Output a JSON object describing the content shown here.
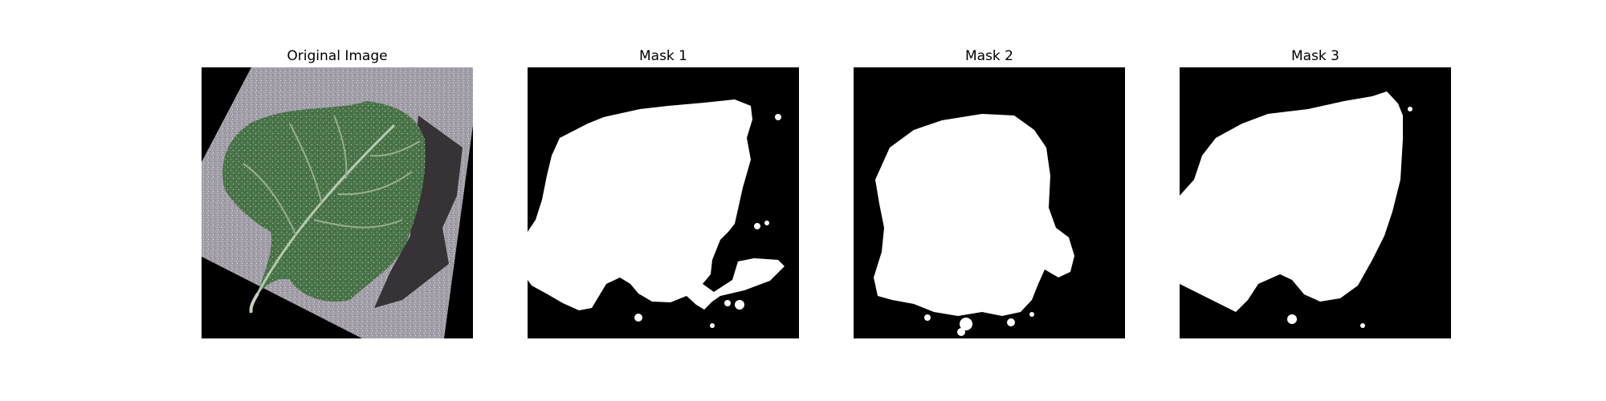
{
  "panels": [
    {
      "title": "Original Image"
    },
    {
      "title": "Mask 1"
    },
    {
      "title": "Mask 2"
    },
    {
      "title": "Mask 3"
    }
  ],
  "colors": {
    "background": "#ffffff",
    "mask_background": "#000000",
    "mask_foreground": "#ffffff",
    "surface": "#a29ea8",
    "leaf": "#3f6b41",
    "leaf_highlight": "#9cb598",
    "shadow": "#2a2628"
  }
}
